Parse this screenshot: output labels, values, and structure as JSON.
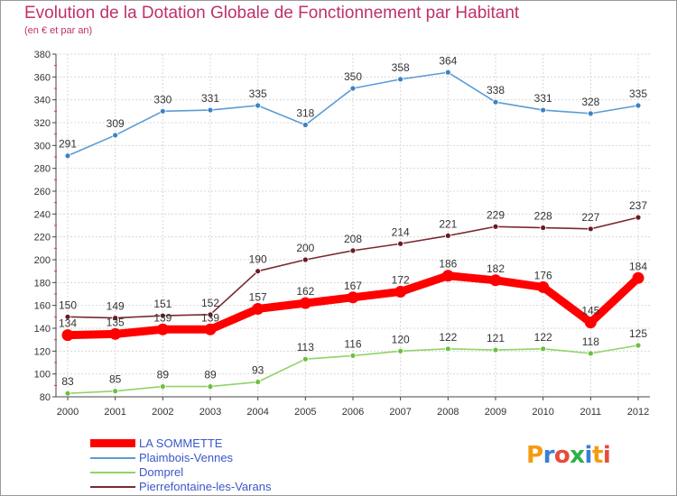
{
  "title": "Evolution de la Dotation Globale de Fonctionnement par Habitant",
  "subtitle": "(en € et par an)",
  "chart_data": {
    "type": "line",
    "x": [
      "2000",
      "2001",
      "2002",
      "2003",
      "2004",
      "2005",
      "2006",
      "2007",
      "2008",
      "2009",
      "2010",
      "2011",
      "2012"
    ],
    "ylim": [
      80,
      380
    ],
    "yticks": [
      80,
      100,
      120,
      140,
      160,
      180,
      200,
      220,
      240,
      260,
      280,
      300,
      320,
      340,
      360,
      380
    ],
    "grid": true,
    "series": [
      {
        "name": "Plaimbois-Vennes",
        "color": "#5b9bd5",
        "dot": "#3c82c4",
        "values": [
          291,
          309,
          330,
          331,
          335,
          318,
          350,
          358,
          364,
          338,
          331,
          328,
          335
        ]
      },
      {
        "name": "Pierrefontaine-les-Varans",
        "color": "#7a2a2f",
        "dot": "#6a1a20",
        "values": [
          150,
          149,
          151,
          152,
          190,
          200,
          208,
          214,
          221,
          229,
          228,
          227,
          237
        ]
      },
      {
        "name": "LA SOMMETTE",
        "color": "#ff0000",
        "dot": "#ff0000",
        "values": [
          134,
          135,
          139,
          139,
          157,
          162,
          167,
          172,
          186,
          182,
          176,
          145,
          184
        ]
      },
      {
        "name": "Domprel",
        "color": "#8fd468",
        "dot": "#6cc040",
        "values": [
          83,
          85,
          89,
          89,
          93,
          113,
          116,
          120,
          122,
          121,
          122,
          118,
          125
        ]
      }
    ]
  },
  "legend": {
    "items": [
      {
        "label": "LA SOMMETTE",
        "color": "#ff0000"
      },
      {
        "label": "Plaimbois-Vennes",
        "color": "#5b9bd5"
      },
      {
        "label": "Domprel",
        "color": "#8fd468"
      },
      {
        "label": "Pierrefontaine-les-Varans",
        "color": "#7a2a2f"
      }
    ]
  },
  "logo": {
    "text": "Proxiti"
  }
}
